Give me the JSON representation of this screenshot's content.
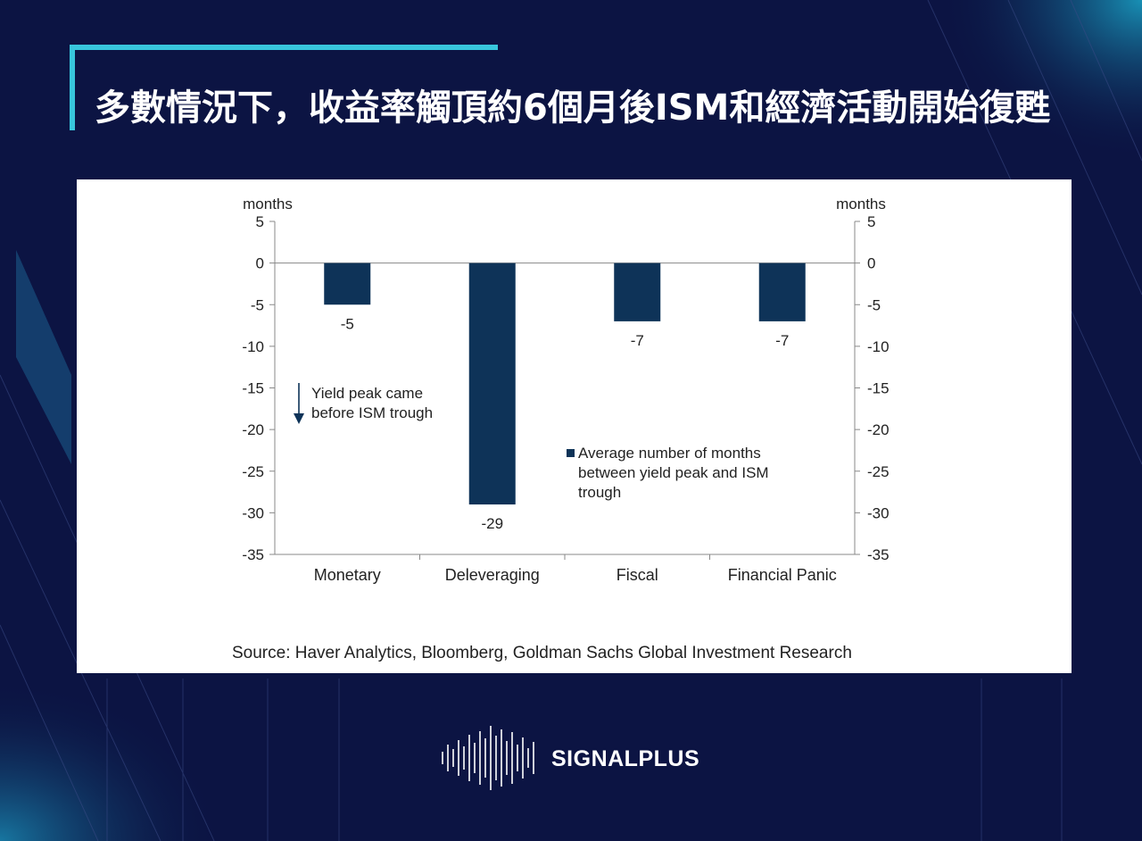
{
  "header": {
    "title": "多數情況下，收益率觸頂約6個月後ISM和經濟活動開始復甦"
  },
  "colors": {
    "background": "#0c1443",
    "accent": "#38c6dc",
    "bar": "#0e3358",
    "panel": "#ffffff"
  },
  "chart_data": {
    "type": "bar",
    "categories": [
      "Monetary",
      "Deleveraging",
      "Fiscal",
      "Financial Panic"
    ],
    "series": [
      {
        "name": "Average number of months between yield peak and ISM trough",
        "values": [
          -5,
          -29,
          -7,
          -7
        ]
      }
    ],
    "data_labels": [
      "-5",
      "-29",
      "-7",
      "-7"
    ],
    "ylim": [
      -35,
      5
    ],
    "yticks": [
      5,
      0,
      -5,
      -10,
      -15,
      -20,
      -25,
      -30,
      -35
    ],
    "ylabel_left": "months",
    "ylabel_right": "months",
    "annotation_lines": [
      "Yield peak came",
      "before ISM trough"
    ],
    "legend_lines": [
      "Average number of months",
      "between yield peak and ISM",
      "trough"
    ],
    "grid": false,
    "legend_position": "center-right"
  },
  "source": "Source: Haver Analytics, Bloomberg, Goldman Sachs Global Investment Research",
  "brand": {
    "name": "SIGNALPLUS",
    "icon": "waveform-logo-icon"
  }
}
